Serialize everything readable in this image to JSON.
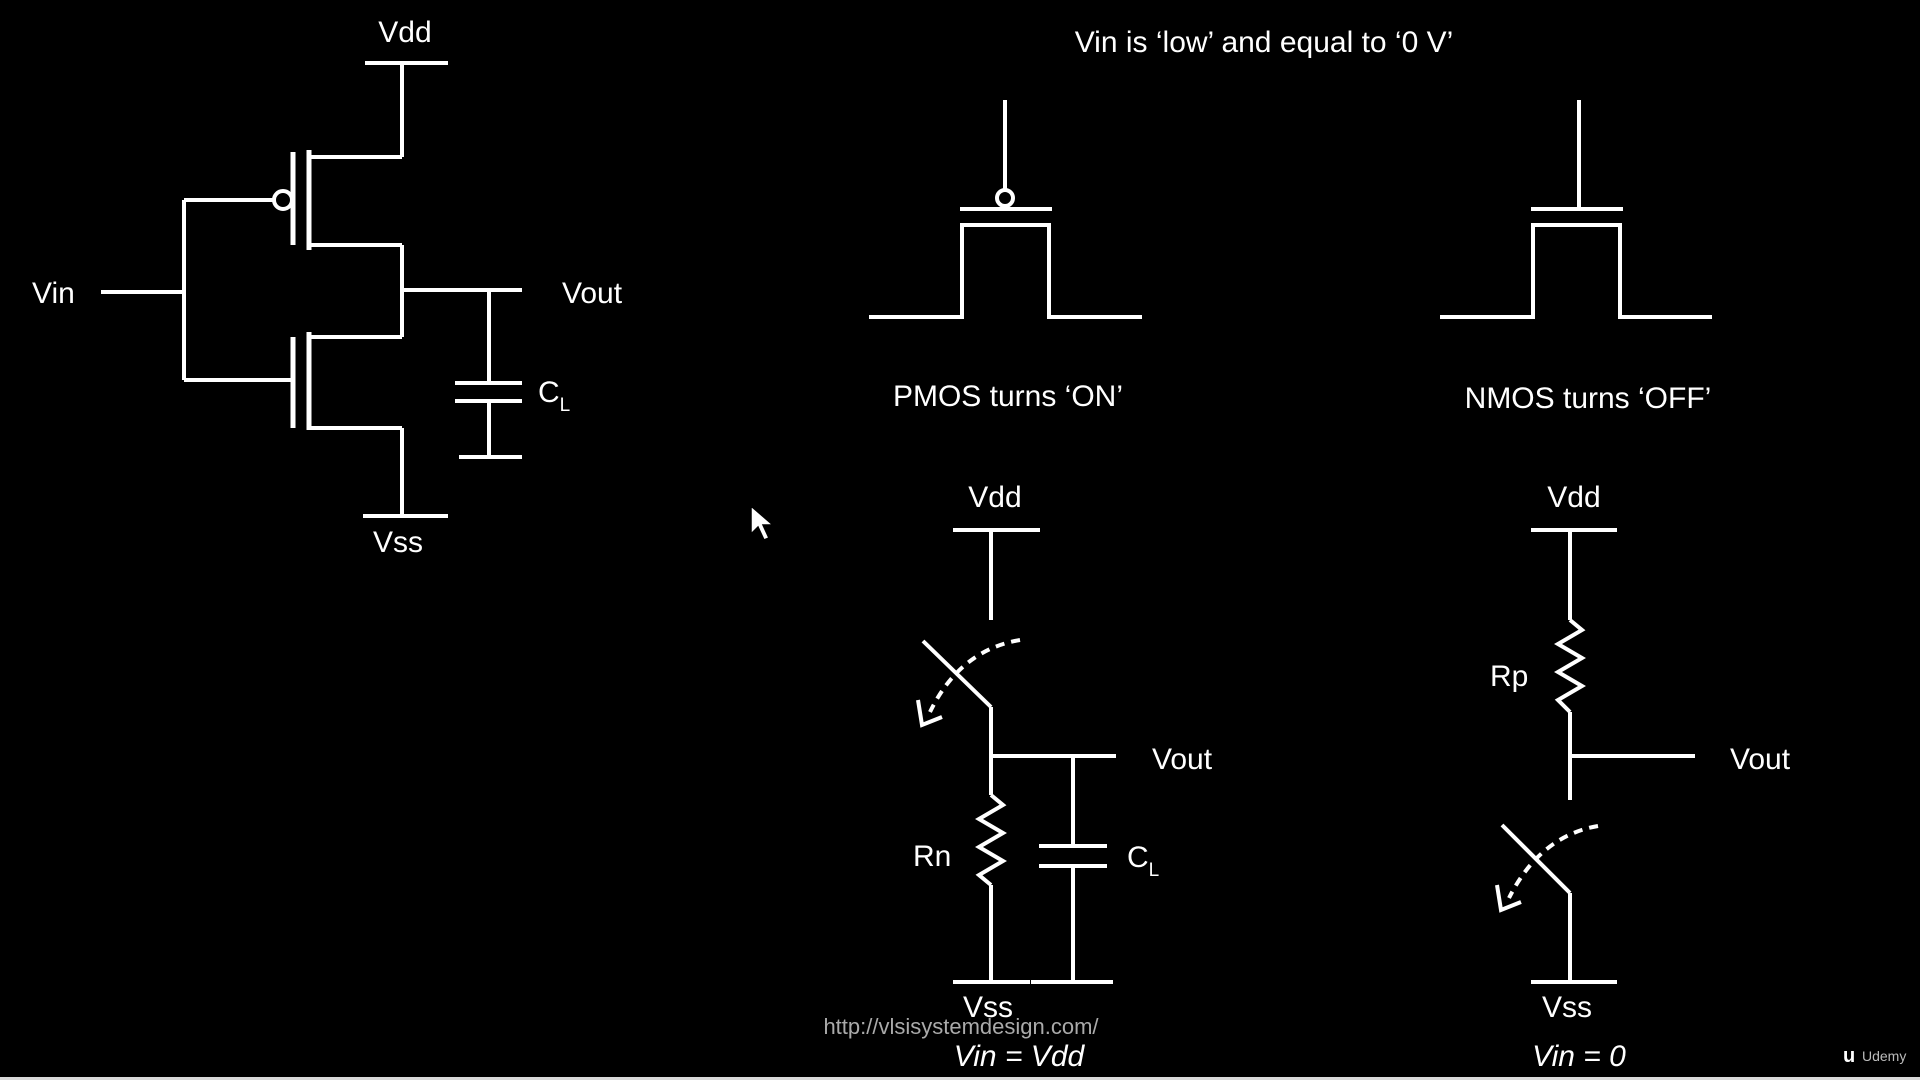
{
  "title": "Vin is ‘low’ and equal to ‘0 V’",
  "inverter": {
    "vdd": "Vdd",
    "vss": "Vss",
    "vin": "Vin",
    "vout": "Vout",
    "cap_c": "C",
    "cap_sub": "L"
  },
  "pmos_caption": "PMOS turns ‘ON’",
  "nmos_caption": "NMOS turns ‘OFF’",
  "left_equiv": {
    "vdd": "Vdd",
    "vss": "Vss",
    "vout": "Vout",
    "resistor": "Rn",
    "cap_c": "C",
    "cap_sub": "L",
    "condition": "Vin = Vdd"
  },
  "right_equiv": {
    "vdd": "Vdd",
    "vss": "Vss",
    "vout": "Vout",
    "resistor": "Rp",
    "condition": "Vin = 0"
  },
  "watermark_url": "http://vlsisystemdesign.com/",
  "brand": "Udemy"
}
